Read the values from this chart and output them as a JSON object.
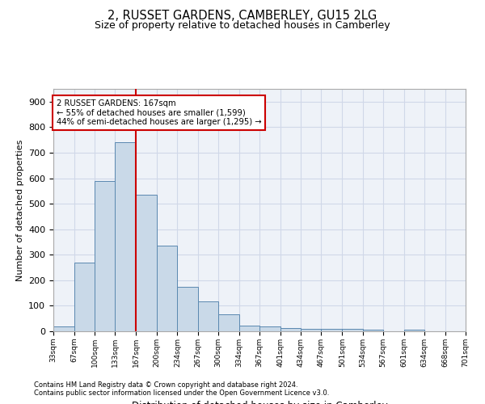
{
  "title": "2, RUSSET GARDENS, CAMBERLEY, GU15 2LG",
  "subtitle": "Size of property relative to detached houses in Camberley",
  "xlabel": "Distribution of detached houses by size in Camberley",
  "ylabel": "Number of detached properties",
  "footnote1": "Contains HM Land Registry data © Crown copyright and database right 2024.",
  "footnote2": "Contains public sector information licensed under the Open Government Licence v3.0.",
  "annotation_line1": "2 RUSSET GARDENS: 167sqm",
  "annotation_line2": "← 55% of detached houses are smaller (1,599)",
  "annotation_line3": "44% of semi-detached houses are larger (1,295) →",
  "property_size": 167,
  "bin_edges": [
    33,
    67,
    100,
    133,
    167,
    200,
    234,
    267,
    300,
    334,
    367,
    401,
    434,
    467,
    501,
    534,
    567,
    601,
    634,
    668,
    701
  ],
  "bar_heights": [
    20,
    270,
    590,
    740,
    535,
    335,
    175,
    118,
    68,
    22,
    20,
    12,
    9,
    8,
    8,
    6,
    0,
    7,
    0,
    0
  ],
  "bar_color": "#c9d9e8",
  "bar_edge_color": "#5a88b0",
  "marker_color": "#cc0000",
  "grid_color": "#d0d8e8",
  "bg_color": "#eef2f8",
  "annotation_box_edge": "#cc0000",
  "ylim": [
    0,
    950
  ],
  "yticks": [
    0,
    100,
    200,
    300,
    400,
    500,
    600,
    700,
    800,
    900
  ]
}
